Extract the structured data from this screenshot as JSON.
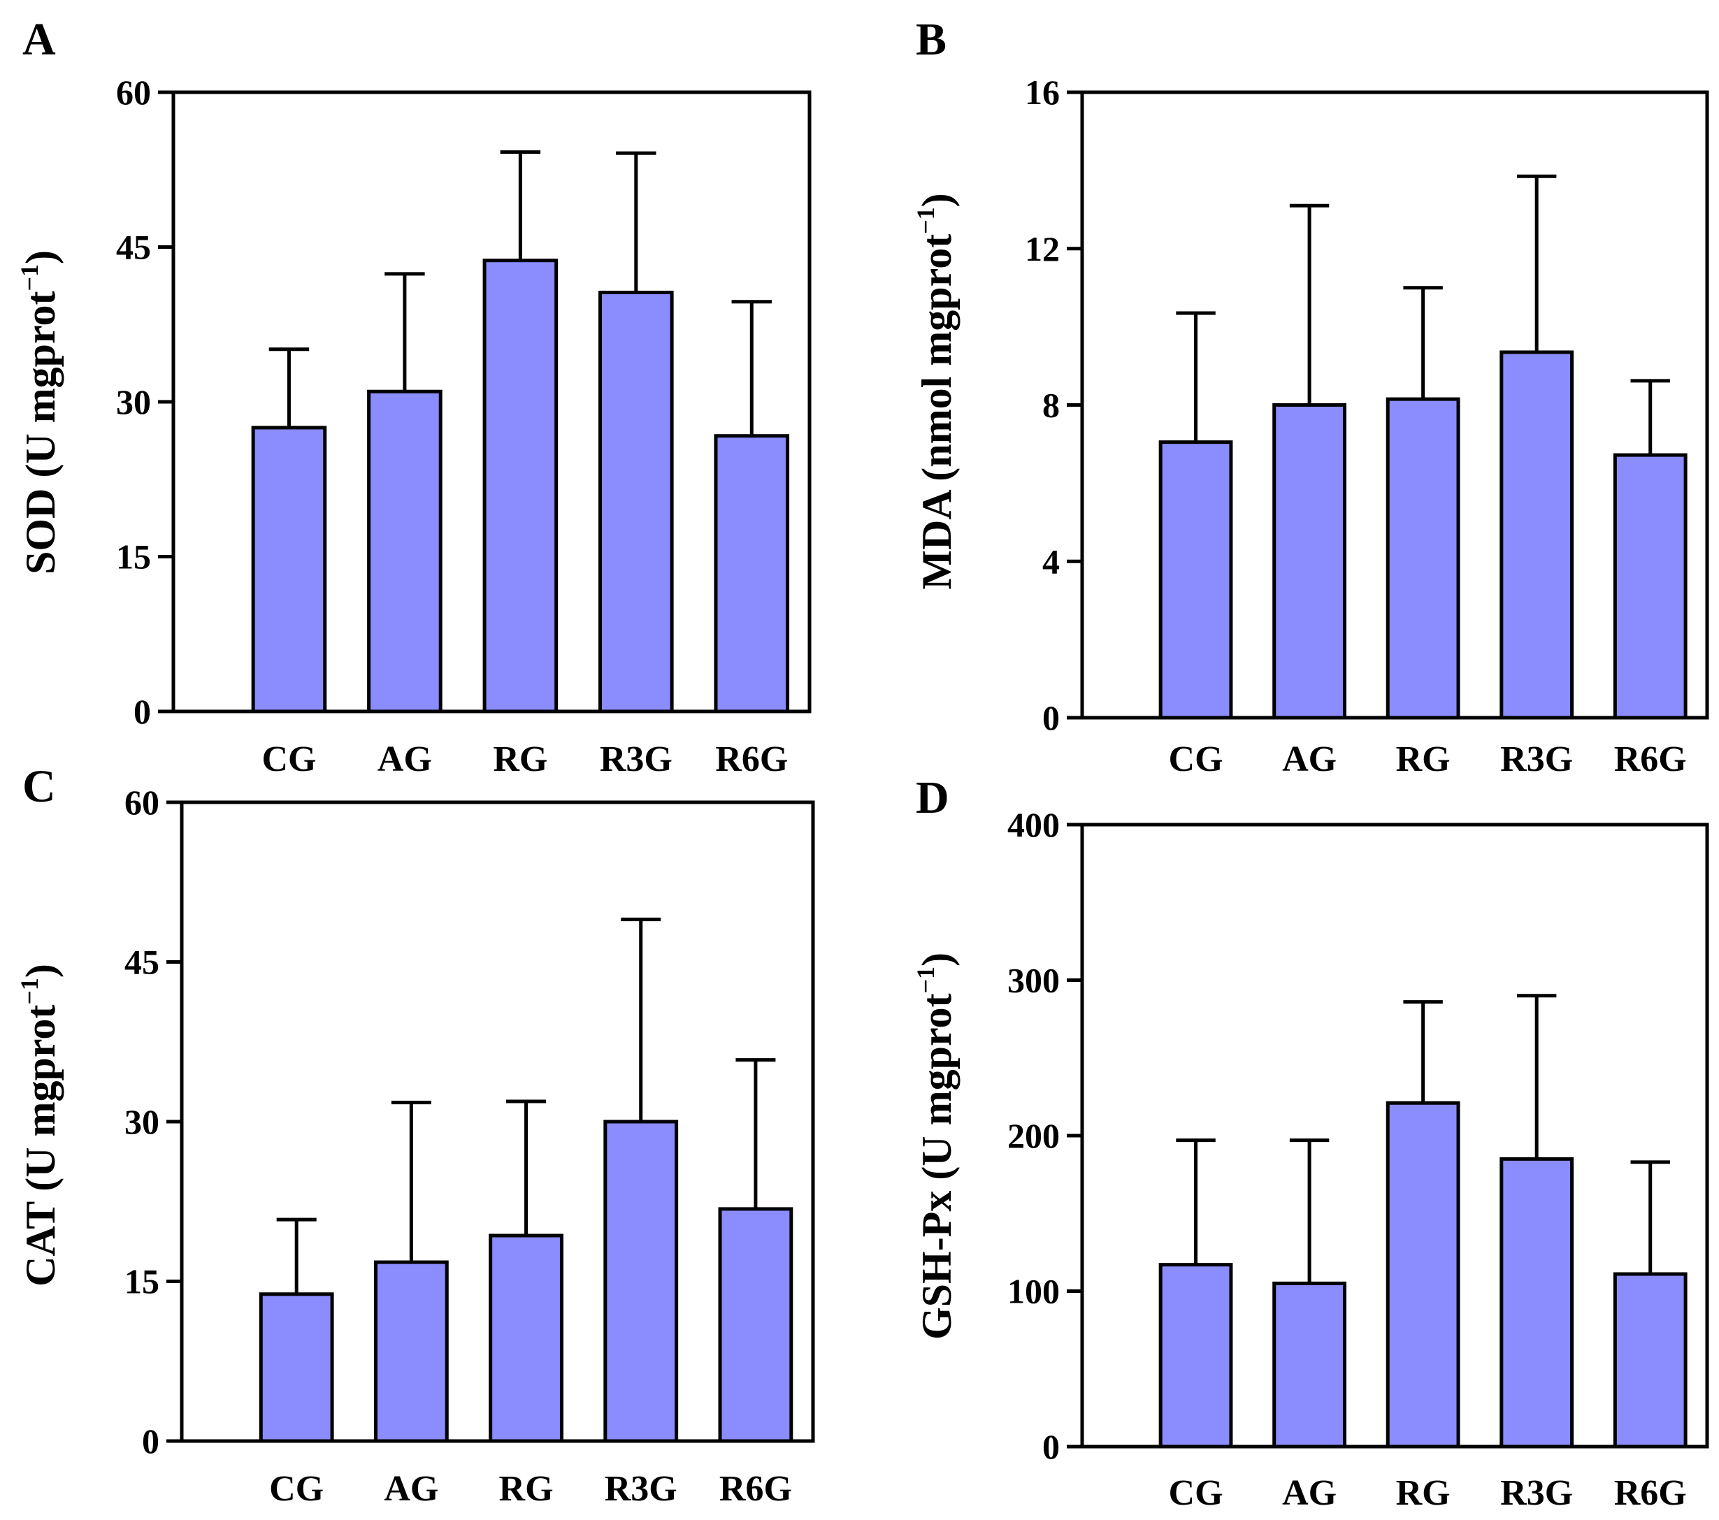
{
  "colors": {
    "bar_fill": "#8b8cfd",
    "stroke": "#000000",
    "background": "#ffffff"
  },
  "chart_data": [
    {
      "panel": "A",
      "type": "bar",
      "categories": [
        "CG",
        "AG",
        "RG",
        "R3G",
        "R6G"
      ],
      "values": [
        27.5,
        31,
        43.7,
        40.6,
        26.7
      ],
      "errors": [
        7.6,
        11.4,
        10.5,
        13.5,
        13
      ],
      "ylim": [
        0,
        60
      ],
      "yticks": [
        0,
        15,
        30,
        45,
        60
      ],
      "ylabel": {
        "main": "SOD (U mgprot",
        "sup": "−1",
        "close": ")"
      },
      "xlabel": ""
    },
    {
      "panel": "B",
      "type": "bar",
      "categories": [
        "CG",
        "AG",
        "RG",
        "R3G",
        "R6G"
      ],
      "values": [
        7.05,
        8,
        8.15,
        9.35,
        6.72
      ],
      "errors": [
        3.3,
        5.1,
        2.85,
        4.5,
        1.9
      ],
      "ylim": [
        0,
        16
      ],
      "yticks": [
        0,
        4,
        8,
        12,
        16
      ],
      "ylabel": {
        "main": "MDA (nmol mgprot",
        "sup": "−1",
        "close": ")"
      },
      "xlabel": ""
    },
    {
      "panel": "C",
      "type": "bar",
      "categories": [
        "CG",
        "AG",
        "RG",
        "R3G",
        "R6G"
      ],
      "values": [
        13.8,
        16.8,
        19.3,
        30,
        21.8
      ],
      "errors": [
        7,
        15,
        12.6,
        19,
        14
      ],
      "ylim": [
        0,
        60
      ],
      "yticks": [
        0,
        15,
        30,
        45,
        60
      ],
      "ylabel": {
        "main": "CAT (U mgprot",
        "sup": "−1",
        "close": ")"
      },
      "xlabel": ""
    },
    {
      "panel": "D",
      "type": "bar",
      "categories": [
        "CG",
        "AG",
        "RG",
        "R3G",
        "R6G"
      ],
      "values": [
        117,
        105,
        221,
        185,
        111
      ],
      "errors": [
        80,
        92,
        65,
        105,
        72
      ],
      "ylim": [
        0,
        400
      ],
      "yticks": [
        0,
        100,
        200,
        300,
        400
      ],
      "ylabel": {
        "main": "GSH-Px (U mgprot",
        "sup": "−1",
        "close": ")"
      },
      "xlabel": ""
    }
  ]
}
